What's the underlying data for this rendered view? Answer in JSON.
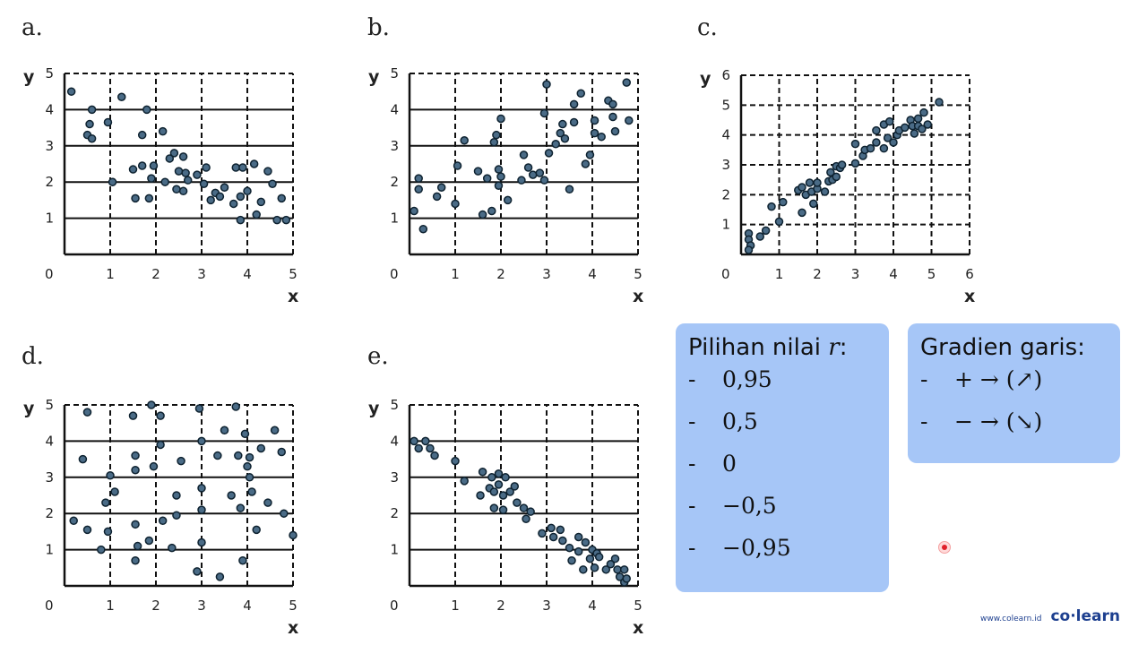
{
  "chart_data": [
    {
      "type": "scatter",
      "label": "a.",
      "xlabel": "x",
      "ylabel": "y",
      "xlim": [
        0,
        5
      ],
      "ylim": [
        0,
        5
      ],
      "xticks": [
        1,
        2,
        3,
        4,
        5
      ],
      "yticks": [
        1,
        2,
        3,
        4,
        5
      ],
      "points": [
        [
          0.15,
          4.5
        ],
        [
          0.55,
          3.6
        ],
        [
          0.6,
          4.0
        ],
        [
          0.5,
          3.3
        ],
        [
          0.6,
          3.2
        ],
        [
          0.95,
          3.65
        ],
        [
          1.05,
          2.0
        ],
        [
          1.25,
          4.35
        ],
        [
          1.8,
          4.0
        ],
        [
          1.7,
          3.3
        ],
        [
          2.15,
          3.4
        ],
        [
          1.5,
          2.35
        ],
        [
          1.7,
          2.45
        ],
        [
          1.95,
          2.45
        ],
        [
          1.9,
          2.1
        ],
        [
          2.2,
          2.0
        ],
        [
          1.55,
          1.55
        ],
        [
          1.85,
          1.55
        ],
        [
          2.3,
          2.65
        ],
        [
          2.4,
          2.8
        ],
        [
          2.6,
          2.7
        ],
        [
          2.5,
          2.3
        ],
        [
          2.65,
          2.25
        ],
        [
          2.7,
          2.05
        ],
        [
          2.45,
          1.8
        ],
        [
          2.6,
          1.75
        ],
        [
          2.9,
          2.2
        ],
        [
          3.1,
          2.4
        ],
        [
          3.05,
          1.95
        ],
        [
          3.2,
          1.5
        ],
        [
          3.3,
          1.7
        ],
        [
          3.5,
          1.85
        ],
        [
          3.4,
          1.6
        ],
        [
          3.75,
          2.4
        ],
        [
          3.9,
          2.4
        ],
        [
          4.15,
          2.5
        ],
        [
          3.85,
          1.6
        ],
        [
          3.7,
          1.4
        ],
        [
          4.0,
          1.75
        ],
        [
          4.3,
          1.45
        ],
        [
          4.45,
          2.3
        ],
        [
          4.55,
          1.95
        ],
        [
          4.2,
          1.1
        ],
        [
          3.85,
          0.95
        ],
        [
          4.75,
          1.55
        ],
        [
          4.65,
          0.95
        ],
        [
          4.85,
          0.95
        ]
      ]
    },
    {
      "type": "scatter",
      "label": "b.",
      "xlabel": "x",
      "ylabel": "y",
      "xlim": [
        0,
        5
      ],
      "ylim": [
        0,
        5
      ],
      "xticks": [
        1,
        2,
        3,
        4,
        5
      ],
      "yticks": [
        1,
        2,
        3,
        4,
        5
      ],
      "points": [
        [
          0.1,
          1.2
        ],
        [
          0.2,
          2.1
        ],
        [
          0.2,
          1.8
        ],
        [
          0.3,
          0.7
        ],
        [
          0.6,
          1.6
        ],
        [
          0.7,
          1.85
        ],
        [
          1.0,
          1.4
        ],
        [
          1.05,
          2.45
        ],
        [
          1.2,
          3.15
        ],
        [
          1.5,
          2.3
        ],
        [
          1.6,
          1.1
        ],
        [
          1.8,
          1.2
        ],
        [
          1.7,
          2.1
        ],
        [
          1.85,
          3.1
        ],
        [
          1.9,
          3.3
        ],
        [
          2.0,
          3.75
        ],
        [
          1.95,
          2.35
        ],
        [
          2.0,
          2.15
        ],
        [
          1.95,
          1.9
        ],
        [
          2.15,
          1.5
        ],
        [
          2.45,
          2.05
        ],
        [
          2.5,
          2.75
        ],
        [
          2.6,
          2.4
        ],
        [
          2.7,
          2.2
        ],
        [
          2.85,
          2.25
        ],
        [
          2.95,
          2.05
        ],
        [
          2.95,
          3.9
        ],
        [
          3.0,
          4.7
        ],
        [
          3.05,
          2.8
        ],
        [
          3.2,
          3.05
        ],
        [
          3.3,
          3.35
        ],
        [
          3.35,
          3.6
        ],
        [
          3.4,
          3.2
        ],
        [
          3.5,
          1.8
        ],
        [
          3.6,
          3.65
        ],
        [
          3.6,
          4.15
        ],
        [
          3.75,
          4.45
        ],
        [
          3.85,
          2.5
        ],
        [
          3.95,
          2.75
        ],
        [
          4.05,
          3.7
        ],
        [
          4.05,
          3.35
        ],
        [
          4.2,
          3.25
        ],
        [
          4.35,
          4.25
        ],
        [
          4.45,
          4.15
        ],
        [
          4.45,
          3.8
        ],
        [
          4.5,
          3.4
        ],
        [
          4.75,
          4.75
        ],
        [
          4.8,
          3.7
        ]
      ]
    },
    {
      "type": "scatter",
      "label": "c.",
      "xlabel": "x",
      "ylabel": "y",
      "xlim": [
        0,
        6
      ],
      "ylim": [
        0,
        6
      ],
      "xticks": [
        1,
        2,
        3,
        4,
        5,
        6
      ],
      "yticks": [
        1,
        2,
        3,
        4,
        5,
        6
      ],
      "points": [
        [
          0.2,
          0.7
        ],
        [
          0.2,
          0.5
        ],
        [
          0.25,
          0.3
        ],
        [
          0.2,
          0.15
        ],
        [
          0.5,
          0.6
        ],
        [
          0.65,
          0.8
        ],
        [
          0.8,
          1.6
        ],
        [
          1.0,
          1.1
        ],
        [
          1.1,
          1.75
        ],
        [
          1.5,
          2.15
        ],
        [
          1.6,
          2.25
        ],
        [
          1.6,
          1.4
        ],
        [
          1.8,
          2.4
        ],
        [
          1.7,
          2.0
        ],
        [
          1.85,
          2.1
        ],
        [
          1.9,
          1.7
        ],
        [
          2.0,
          2.2
        ],
        [
          2.0,
          2.4
        ],
        [
          2.2,
          2.1
        ],
        [
          2.3,
          2.45
        ],
        [
          2.35,
          2.75
        ],
        [
          2.4,
          2.5
        ],
        [
          2.5,
          2.95
        ],
        [
          2.5,
          2.6
        ],
        [
          2.6,
          2.9
        ],
        [
          2.65,
          3.0
        ],
        [
          3.0,
          3.05
        ],
        [
          3.0,
          3.7
        ],
        [
          3.2,
          3.3
        ],
        [
          3.25,
          3.5
        ],
        [
          3.4,
          3.55
        ],
        [
          3.55,
          3.75
        ],
        [
          3.55,
          4.15
        ],
        [
          3.75,
          4.35
        ],
        [
          3.85,
          3.9
        ],
        [
          3.9,
          4.45
        ],
        [
          3.75,
          3.55
        ],
        [
          4.0,
          3.75
        ],
        [
          4.1,
          4.0
        ],
        [
          4.15,
          4.15
        ],
        [
          4.3,
          4.25
        ],
        [
          4.45,
          4.5
        ],
        [
          4.5,
          4.3
        ],
        [
          4.55,
          4.05
        ],
        [
          4.65,
          4.55
        ],
        [
          4.65,
          4.3
        ],
        [
          4.75,
          4.2
        ],
        [
          4.8,
          4.75
        ],
        [
          4.9,
          4.35
        ],
        [
          5.2,
          5.1
        ]
      ]
    },
    {
      "type": "scatter",
      "label": "d.",
      "xlabel": "x",
      "ylabel": "y",
      "xlim": [
        0,
        5
      ],
      "ylim": [
        0,
        5
      ],
      "xticks": [
        1,
        2,
        3,
        4,
        5
      ],
      "yticks": [
        1,
        2,
        3,
        4,
        5
      ],
      "points": [
        [
          0.5,
          4.8
        ],
        [
          0.4,
          3.5
        ],
        [
          0.2,
          1.8
        ],
        [
          0.5,
          1.55
        ],
        [
          0.8,
          1.0
        ],
        [
          0.9,
          2.3
        ],
        [
          1.0,
          3.05
        ],
        [
          1.1,
          2.6
        ],
        [
          0.95,
          1.5
        ],
        [
          1.5,
          4.7
        ],
        [
          1.55,
          3.6
        ],
        [
          1.55,
          3.2
        ],
        [
          1.55,
          1.7
        ],
        [
          1.6,
          1.1
        ],
        [
          1.55,
          0.7
        ],
        [
          1.85,
          1.25
        ],
        [
          1.9,
          5.0
        ],
        [
          1.95,
          3.3
        ],
        [
          2.1,
          4.7
        ],
        [
          2.1,
          3.9
        ],
        [
          2.15,
          1.8
        ],
        [
          2.35,
          1.05
        ],
        [
          2.45,
          2.5
        ],
        [
          2.45,
          1.95
        ],
        [
          2.55,
          3.45
        ],
        [
          2.95,
          4.9
        ],
        [
          3.0,
          4.0
        ],
        [
          3.0,
          2.7
        ],
        [
          3.0,
          2.1
        ],
        [
          3.0,
          1.2
        ],
        [
          2.9,
          0.4
        ],
        [
          3.4,
          0.25
        ],
        [
          3.35,
          3.6
        ],
        [
          3.5,
          4.3
        ],
        [
          3.65,
          2.5
        ],
        [
          3.75,
          4.95
        ],
        [
          3.85,
          2.15
        ],
        [
          3.8,
          3.6
        ],
        [
          3.95,
          4.2
        ],
        [
          3.9,
          0.7
        ],
        [
          4.0,
          3.3
        ],
        [
          4.05,
          3.55
        ],
        [
          4.05,
          3.0
        ],
        [
          4.1,
          2.6
        ],
        [
          4.2,
          1.55
        ],
        [
          4.3,
          3.8
        ],
        [
          4.45,
          2.3
        ],
        [
          4.6,
          4.3
        ],
        [
          4.75,
          3.7
        ],
        [
          4.8,
          2.0
        ],
        [
          5.0,
          1.4
        ]
      ]
    },
    {
      "type": "scatter",
      "label": "e.",
      "xlabel": "x",
      "ylabel": "y",
      "xlim": [
        0,
        5
      ],
      "ylim": [
        0,
        5
      ],
      "xticks": [
        1,
        2,
        3,
        4,
        5
      ],
      "yticks": [
        1,
        2,
        3,
        4,
        5
      ],
      "points": [
        [
          0.1,
          4.0
        ],
        [
          0.2,
          3.8
        ],
        [
          0.35,
          4.0
        ],
        [
          0.45,
          3.8
        ],
        [
          0.55,
          3.6
        ],
        [
          1.0,
          3.45
        ],
        [
          1.2,
          2.9
        ],
        [
          1.6,
          3.15
        ],
        [
          1.55,
          2.5
        ],
        [
          1.75,
          2.7
        ],
        [
          1.8,
          3.0
        ],
        [
          1.85,
          2.6
        ],
        [
          1.85,
          2.15
        ],
        [
          1.95,
          3.1
        ],
        [
          1.95,
          2.8
        ],
        [
          2.05,
          2.5
        ],
        [
          2.05,
          2.1
        ],
        [
          2.1,
          3.0
        ],
        [
          2.2,
          2.6
        ],
        [
          2.3,
          2.75
        ],
        [
          2.35,
          2.3
        ],
        [
          2.5,
          2.15
        ],
        [
          2.55,
          1.85
        ],
        [
          2.65,
          2.05
        ],
        [
          2.9,
          1.45
        ],
        [
          3.1,
          1.6
        ],
        [
          3.15,
          1.35
        ],
        [
          3.3,
          1.55
        ],
        [
          3.35,
          1.25
        ],
        [
          3.5,
          1.05
        ],
        [
          3.55,
          0.7
        ],
        [
          3.7,
          0.95
        ],
        [
          3.7,
          1.35
        ],
        [
          3.8,
          0.45
        ],
        [
          3.85,
          1.2
        ],
        [
          3.95,
          0.75
        ],
        [
          4.0,
          1.0
        ],
        [
          4.05,
          0.5
        ],
        [
          4.1,
          0.9
        ],
        [
          4.15,
          0.8
        ],
        [
          4.3,
          0.45
        ],
        [
          4.4,
          0.6
        ],
        [
          4.5,
          0.75
        ],
        [
          4.55,
          0.45
        ],
        [
          4.6,
          0.25
        ],
        [
          4.7,
          0.45
        ],
        [
          4.7,
          0.1
        ],
        [
          4.75,
          0.2
        ]
      ]
    }
  ],
  "panel_r": {
    "title": "Pilihan nilai ",
    "title_var": "r",
    "title_colon": ":",
    "options": [
      "0,95",
      "0,5",
      "0",
      "−0,5",
      "−0,95"
    ]
  },
  "panel_gradient": {
    "title": "Gradien garis:",
    "rows": [
      "+ → (↗)",
      "− → (↘)"
    ]
  },
  "branding": {
    "url": "www.colearn.id",
    "logo": "co·learn"
  },
  "colors": {
    "point_fill": "#4a6b86",
    "point_stroke": "#0e2230",
    "panel": "#a6c6f7",
    "brand": "#1d3f8f"
  }
}
